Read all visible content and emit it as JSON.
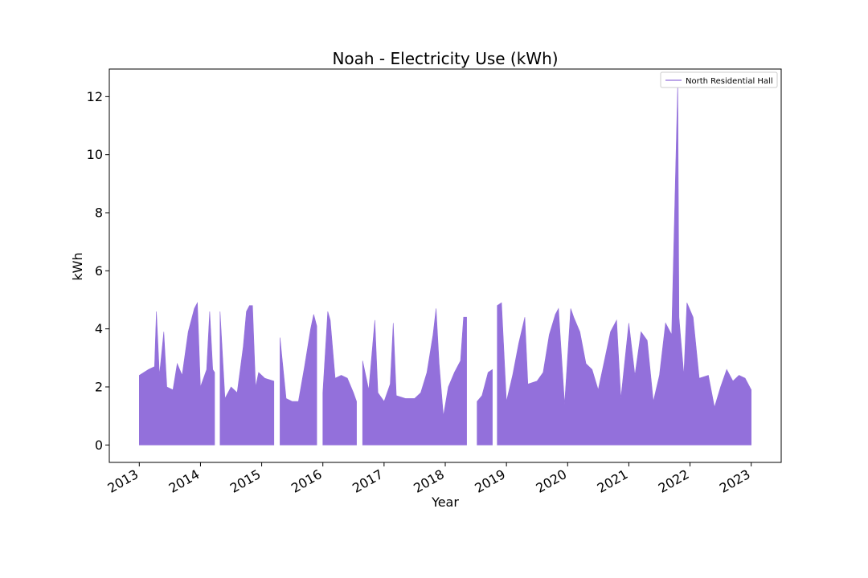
{
  "chart_data": {
    "type": "area",
    "title": "Noah - Electricity Use (kWh)",
    "xlabel": "Year",
    "ylabel": "kWh",
    "xlim": [
      2012.51,
      2023.49
    ],
    "ylim": [
      -0.6,
      12.95
    ],
    "x_ticks": [
      "2013",
      "2014",
      "2015",
      "2016",
      "2017",
      "2018",
      "2019",
      "2020",
      "2021",
      "2022",
      "2023"
    ],
    "y_ticks": [
      0,
      2,
      4,
      6,
      8,
      10,
      12
    ],
    "legend": {
      "position": "top-right",
      "entries": [
        "North Residential Hall"
      ]
    },
    "grid": false,
    "series": [
      {
        "name": "North Residential Hall",
        "color": "#9370DB",
        "baseline": 0,
        "segments": [
          {
            "points": [
              [
                2013.0,
                2.4
              ],
              [
                2013.15,
                2.6
              ],
              [
                2013.25,
                2.7
              ],
              [
                2013.28,
                4.6
              ],
              [
                2013.33,
                2.4
              ],
              [
                2013.4,
                3.9
              ],
              [
                2013.45,
                2.0
              ],
              [
                2013.55,
                1.9
              ],
              [
                2013.62,
                2.8
              ],
              [
                2013.7,
                2.4
              ],
              [
                2013.8,
                3.9
              ],
              [
                2013.9,
                4.7
              ],
              [
                2013.95,
                4.9
              ],
              [
                2014.0,
                2.0
              ],
              [
                2014.1,
                2.6
              ],
              [
                2014.15,
                4.6
              ],
              [
                2014.2,
                2.6
              ],
              [
                2014.23,
                2.5
              ]
            ]
          },
          {
            "points": [
              [
                2014.32,
                4.6
              ],
              [
                2014.4,
                1.6
              ],
              [
                2014.5,
                2.0
              ],
              [
                2014.6,
                1.8
              ],
              [
                2014.7,
                3.4
              ],
              [
                2014.75,
                4.6
              ],
              [
                2014.8,
                4.8
              ],
              [
                2014.85,
                4.8
              ],
              [
                2014.9,
                2.0
              ],
              [
                2014.95,
                2.5
              ],
              [
                2015.05,
                2.3
              ],
              [
                2015.2,
                2.2
              ]
            ]
          },
          {
            "points": [
              [
                2015.3,
                3.7
              ],
              [
                2015.4,
                1.6
              ],
              [
                2015.5,
                1.5
              ],
              [
                2015.6,
                1.5
              ],
              [
                2015.7,
                2.7
              ],
              [
                2015.8,
                4.0
              ],
              [
                2015.85,
                4.5
              ],
              [
                2015.9,
                4.1
              ]
            ]
          },
          {
            "points": [
              [
                2016.0,
                1.8
              ],
              [
                2016.08,
                4.6
              ],
              [
                2016.12,
                4.3
              ],
              [
                2016.2,
                2.3
              ],
              [
                2016.3,
                2.4
              ],
              [
                2016.4,
                2.3
              ],
              [
                2016.5,
                1.8
              ],
              [
                2016.55,
                1.5
              ]
            ]
          },
          {
            "points": [
              [
                2016.65,
                2.9
              ],
              [
                2016.75,
                1.9
              ],
              [
                2016.85,
                4.3
              ],
              [
                2016.9,
                1.8
              ],
              [
                2017.0,
                1.5
              ],
              [
                2017.1,
                2.1
              ],
              [
                2017.15,
                4.2
              ],
              [
                2017.2,
                1.7
              ],
              [
                2017.35,
                1.6
              ],
              [
                2017.5,
                1.6
              ],
              [
                2017.6,
                1.8
              ],
              [
                2017.7,
                2.5
              ],
              [
                2017.8,
                3.8
              ],
              [
                2017.85,
                4.7
              ],
              [
                2017.9,
                2.8
              ],
              [
                2017.97,
                1.0
              ],
              [
                2018.05,
                2.0
              ],
              [
                2018.15,
                2.5
              ],
              [
                2018.25,
                2.9
              ],
              [
                2018.3,
                4.4
              ],
              [
                2018.35,
                4.4
              ]
            ]
          },
          {
            "points": [
              [
                2018.52,
                1.5
              ],
              [
                2018.6,
                1.7
              ],
              [
                2018.7,
                2.5
              ],
              [
                2018.77,
                2.6
              ]
            ]
          },
          {
            "points": [
              [
                2018.85,
                4.8
              ],
              [
                2018.92,
                4.9
              ],
              [
                2019.0,
                1.5
              ],
              [
                2019.1,
                2.4
              ],
              [
                2019.2,
                3.5
              ],
              [
                2019.3,
                4.4
              ],
              [
                2019.35,
                2.1
              ],
              [
                2019.5,
                2.2
              ],
              [
                2019.6,
                2.5
              ],
              [
                2019.7,
                3.8
              ],
              [
                2019.8,
                4.5
              ],
              [
                2019.85,
                4.7
              ],
              [
                2019.95,
                1.4
              ],
              [
                2020.05,
                4.7
              ],
              [
                2020.1,
                4.4
              ],
              [
                2020.2,
                3.9
              ],
              [
                2020.3,
                2.8
              ],
              [
                2020.4,
                2.6
              ],
              [
                2020.5,
                1.9
              ],
              [
                2020.6,
                2.9
              ],
              [
                2020.7,
                3.9
              ],
              [
                2020.8,
                4.3
              ],
              [
                2020.87,
                1.6
              ],
              [
                2021.0,
                4.2
              ],
              [
                2021.1,
                2.4
              ],
              [
                2021.2,
                3.9
              ],
              [
                2021.3,
                3.6
              ],
              [
                2021.4,
                1.5
              ],
              [
                2021.5,
                2.4
              ],
              [
                2021.6,
                4.2
              ],
              [
                2021.7,
                3.8
              ],
              [
                2021.8,
                12.5
              ],
              [
                2021.82,
                4.4
              ],
              [
                2021.9,
                2.4
              ],
              [
                2021.95,
                4.9
              ],
              [
                2022.05,
                4.4
              ],
              [
                2022.15,
                2.3
              ],
              [
                2022.3,
                2.4
              ],
              [
                2022.4,
                1.3
              ],
              [
                2022.5,
                2.0
              ],
              [
                2022.6,
                2.6
              ],
              [
                2022.7,
                2.2
              ],
              [
                2022.8,
                2.4
              ],
              [
                2022.9,
                2.3
              ],
              [
                2023.0,
                1.9
              ]
            ]
          }
        ]
      }
    ]
  }
}
